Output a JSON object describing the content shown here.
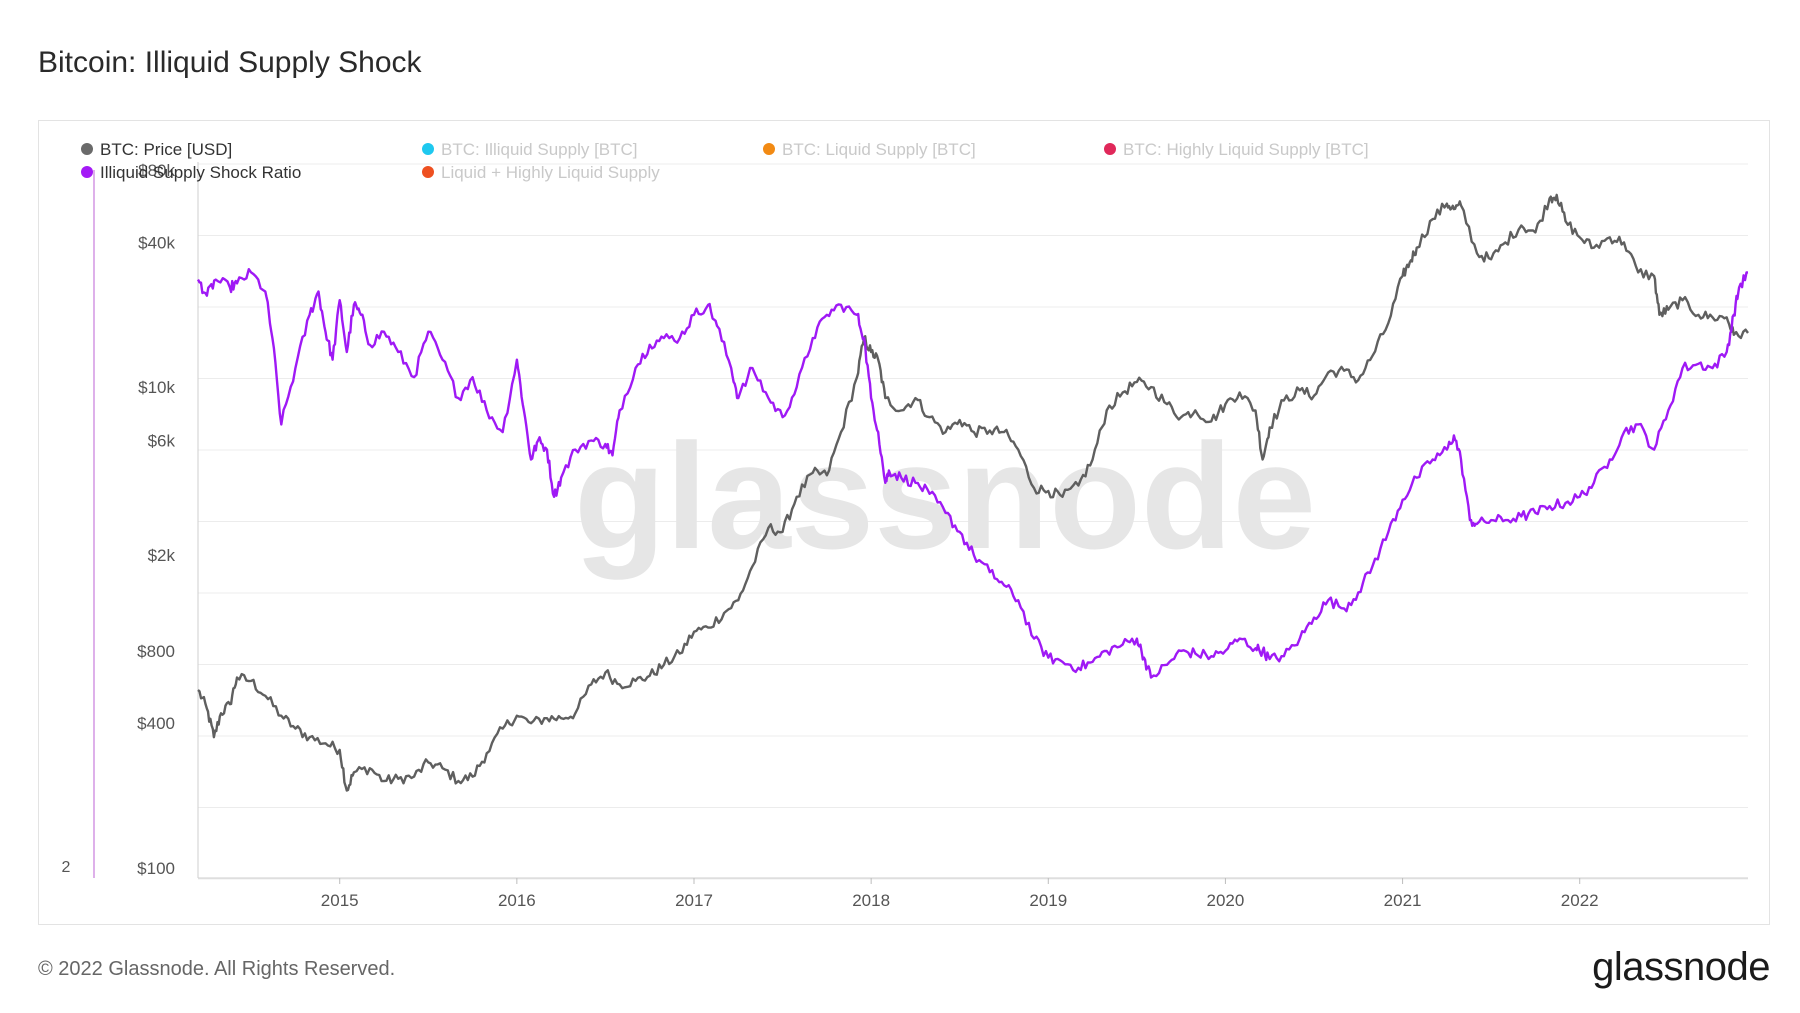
{
  "title": "Bitcoin: Illiquid Supply Shock",
  "footer": "© 2022 Glassnode. All Rights Reserved.",
  "brand": "glassnode",
  "watermark": "glassnode",
  "colors": {
    "price": "#5f5f5f",
    "ratio": "#9f19f5",
    "grid": "#ececec",
    "axis_text": "#555555"
  },
  "chart_data": {
    "type": "line",
    "title": "Bitcoin: Illiquid Supply Shock",
    "legend": [
      {
        "label": "BTC: Price [USD]",
        "color": "#6a6a6a",
        "active": true
      },
      {
        "label": "BTC: Illiquid Supply [BTC]",
        "color": "#1ec8ef",
        "active": false
      },
      {
        "label": "BTC: Liquid Supply [BTC]",
        "color": "#f28a13",
        "active": false
      },
      {
        "label": "BTC: Highly Liquid Supply [BTC]",
        "color": "#e0285a",
        "active": false
      },
      {
        "label": "Illiquid Supply Shock Ratio",
        "color": "#a41af6",
        "active": true
      },
      {
        "label": "Liquid + Highly Liquid Supply",
        "color": "#ee5020",
        "active": false
      }
    ],
    "x_ticks": [
      "2015",
      "2016",
      "2017",
      "2018",
      "2019",
      "2020",
      "2021",
      "2022"
    ],
    "x_range": [
      2014.2,
      2022.95
    ],
    "y_left_label": "2",
    "y_right": {
      "scale": "log",
      "range": [
        100,
        80000
      ],
      "tick_values": [
        100,
        400,
        800,
        2000,
        6000,
        10000,
        40000,
        80000
      ],
      "tick_labels": [
        "$100",
        "$400",
        "$800",
        "$2k",
        "$6k",
        "$10k",
        "$40k",
        "$80k"
      ]
    },
    "series": [
      {
        "name": "BTC: Price [USD]",
        "x": [
          2014.2,
          2014.25,
          2014.29,
          2014.33,
          2014.38,
          2014.42,
          2014.5,
          2014.58,
          2014.67,
          2014.75,
          2014.83,
          2014.92,
          2015.0,
          2015.04,
          2015.08,
          2015.17,
          2015.25,
          2015.33,
          2015.42,
          2015.5,
          2015.58,
          2015.67,
          2015.75,
          2015.83,
          2015.92,
          2016.0,
          2016.08,
          2016.17,
          2016.25,
          2016.33,
          2016.42,
          2016.5,
          2016.58,
          2016.67,
          2016.75,
          2016.83,
          2016.92,
          2017.0,
          2017.08,
          2017.17,
          2017.25,
          2017.33,
          2017.42,
          2017.5,
          2017.58,
          2017.67,
          2017.75,
          2017.83,
          2017.92,
          2017.96,
          2018.0,
          2018.04,
          2018.08,
          2018.17,
          2018.25,
          2018.33,
          2018.42,
          2018.5,
          2018.58,
          2018.67,
          2018.75,
          2018.83,
          2018.92,
          2019.0,
          2019.08,
          2019.17,
          2019.25,
          2019.33,
          2019.42,
          2019.5,
          2019.58,
          2019.67,
          2019.75,
          2019.83,
          2019.92,
          2020.0,
          2020.08,
          2020.17,
          2020.21,
          2020.25,
          2020.33,
          2020.42,
          2020.5,
          2020.58,
          2020.67,
          2020.75,
          2020.83,
          2020.92,
          2021.0,
          2021.04,
          2021.08,
          2021.17,
          2021.25,
          2021.29,
          2021.33,
          2021.42,
          2021.5,
          2021.58,
          2021.67,
          2021.75,
          2021.83,
          2021.87,
          2021.92,
          2022.0,
          2022.08,
          2022.17,
          2022.25,
          2022.33,
          2022.42,
          2022.45,
          2022.5,
          2022.58,
          2022.67,
          2022.75,
          2022.83,
          2022.87,
          2022.95
        ],
        "values": [
          550,
          460,
          350,
          440,
          480,
          620,
          600,
          520,
          430,
          380,
          350,
          330,
          310,
          210,
          250,
          260,
          230,
          235,
          240,
          275,
          260,
          230,
          240,
          300,
          380,
          430,
          400,
          420,
          420,
          440,
          580,
          650,
          580,
          600,
          630,
          700,
          780,
          960,
          1000,
          1150,
          1300,
          1800,
          2600,
          2500,
          3500,
          4400,
          4300,
          6500,
          11000,
          16000,
          14000,
          13000,
          9000,
          8000,
          9000,
          7500,
          6500,
          7300,
          6500,
          6600,
          6500,
          5500,
          3800,
          3700,
          3500,
          3900,
          5000,
          8000,
          9500,
          10500,
          10000,
          8500,
          7500,
          8000,
          7200,
          8500,
          9500,
          8000,
          5000,
          6800,
          8800,
          9700,
          9200,
          11500,
          11700,
          10700,
          13500,
          18500,
          29000,
          33000,
          38000,
          50000,
          58000,
          55000,
          57000,
          36000,
          34000,
          40000,
          47000,
          44000,
          61000,
          63000,
          49000,
          42000,
          38000,
          42000,
          40000,
          30000,
          29000,
          20000,
          21000,
          23000,
          20000,
          19500,
          19500,
          16500,
          16800
        ]
      },
      {
        "name": "Illiquid Supply Shock Ratio",
        "x": [
          2014.2,
          2014.25,
          2014.3,
          2014.38,
          2014.42,
          2014.5,
          2014.58,
          2014.62,
          2014.67,
          2014.75,
          2014.83,
          2014.88,
          2014.92,
          2014.96,
          2015.0,
          2015.04,
          2015.08,
          2015.12,
          2015.17,
          2015.25,
          2015.33,
          2015.42,
          2015.5,
          2015.58,
          2015.67,
          2015.75,
          2015.83,
          2015.92,
          2016.0,
          2016.04,
          2016.08,
          2016.12,
          2016.17,
          2016.21,
          2016.25,
          2016.33,
          2016.42,
          2016.5,
          2016.54,
          2016.58,
          2016.67,
          2016.75,
          2016.83,
          2016.92,
          2017.0,
          2017.08,
          2017.13,
          2017.21,
          2017.25,
          2017.33,
          2017.42,
          2017.5,
          2017.58,
          2017.67,
          2017.75,
          2017.83,
          2017.92,
          2017.96,
          2018.0,
          2018.04,
          2018.08,
          2018.1,
          2018.17,
          2018.25,
          2018.33,
          2018.42,
          2018.5,
          2018.58,
          2018.67,
          2018.75,
          2018.83,
          2018.92,
          2019.0,
          2019.08,
          2019.17,
          2019.25,
          2019.33,
          2019.42,
          2019.5,
          2019.54,
          2019.58,
          2019.67,
          2019.75,
          2019.83,
          2019.92,
          2020.0,
          2020.08,
          2020.17,
          2020.21,
          2020.25,
          2020.33,
          2020.42,
          2020.5,
          2020.58,
          2020.67,
          2020.75,
          2020.83,
          2020.92,
          2021.0,
          2021.08,
          2021.17,
          2021.25,
          2021.29,
          2021.33,
          2021.38,
          2021.42,
          2021.5,
          2021.58,
          2021.67,
          2021.75,
          2021.83,
          2021.92,
          2022.0,
          2022.08,
          2022.17,
          2022.25,
          2022.33,
          2022.42,
          2022.5,
          2022.58,
          2022.67,
          2022.75,
          2022.83,
          2022.87,
          2022.9,
          2022.95
        ],
        "values": [
          28000,
          24000,
          28000,
          26000,
          27000,
          30000,
          25000,
          16000,
          7000,
          12000,
          20000,
          25000,
          17000,
          13000,
          23000,
          14000,
          22000,
          20000,
          15000,
          17000,
          14000,
          11000,
          17000,
          13000,
          9000,
          11000,
          8000,
          6500,
          13000,
          8000,
          5000,
          6000,
          5500,
          3500,
          4200,
          5500,
          6000,
          5800,
          5200,
          8000,
          12000,
          15000,
          16000,
          16000,
          20000,
          22000,
          18000,
          12000,
          9000,
          12000,
          9000,
          7500,
          10000,
          16000,
          20000,
          22000,
          20000,
          16000,
          9000,
          6500,
          4000,
          4500,
          4200,
          4000,
          3600,
          3000,
          2500,
          2000,
          1700,
          1500,
          1300,
          900,
          750,
          720,
          680,
          720,
          800,
          850,
          900,
          750,
          620,
          700,
          800,
          780,
          760,
          800,
          900,
          820,
          800,
          740,
          760,
          900,
          1100,
          1300,
          1200,
          1400,
          1800,
          2500,
          3400,
          4200,
          5000,
          5500,
          6300,
          5000,
          2800,
          2700,
          2800,
          2800,
          2900,
          3000,
          3200,
          3300,
          3500,
          4000,
          5000,
          6500,
          7000,
          5500,
          8000,
          12000,
          12500,
          12000,
          14000,
          20000,
          26000,
          30000
        ]
      }
    ]
  }
}
